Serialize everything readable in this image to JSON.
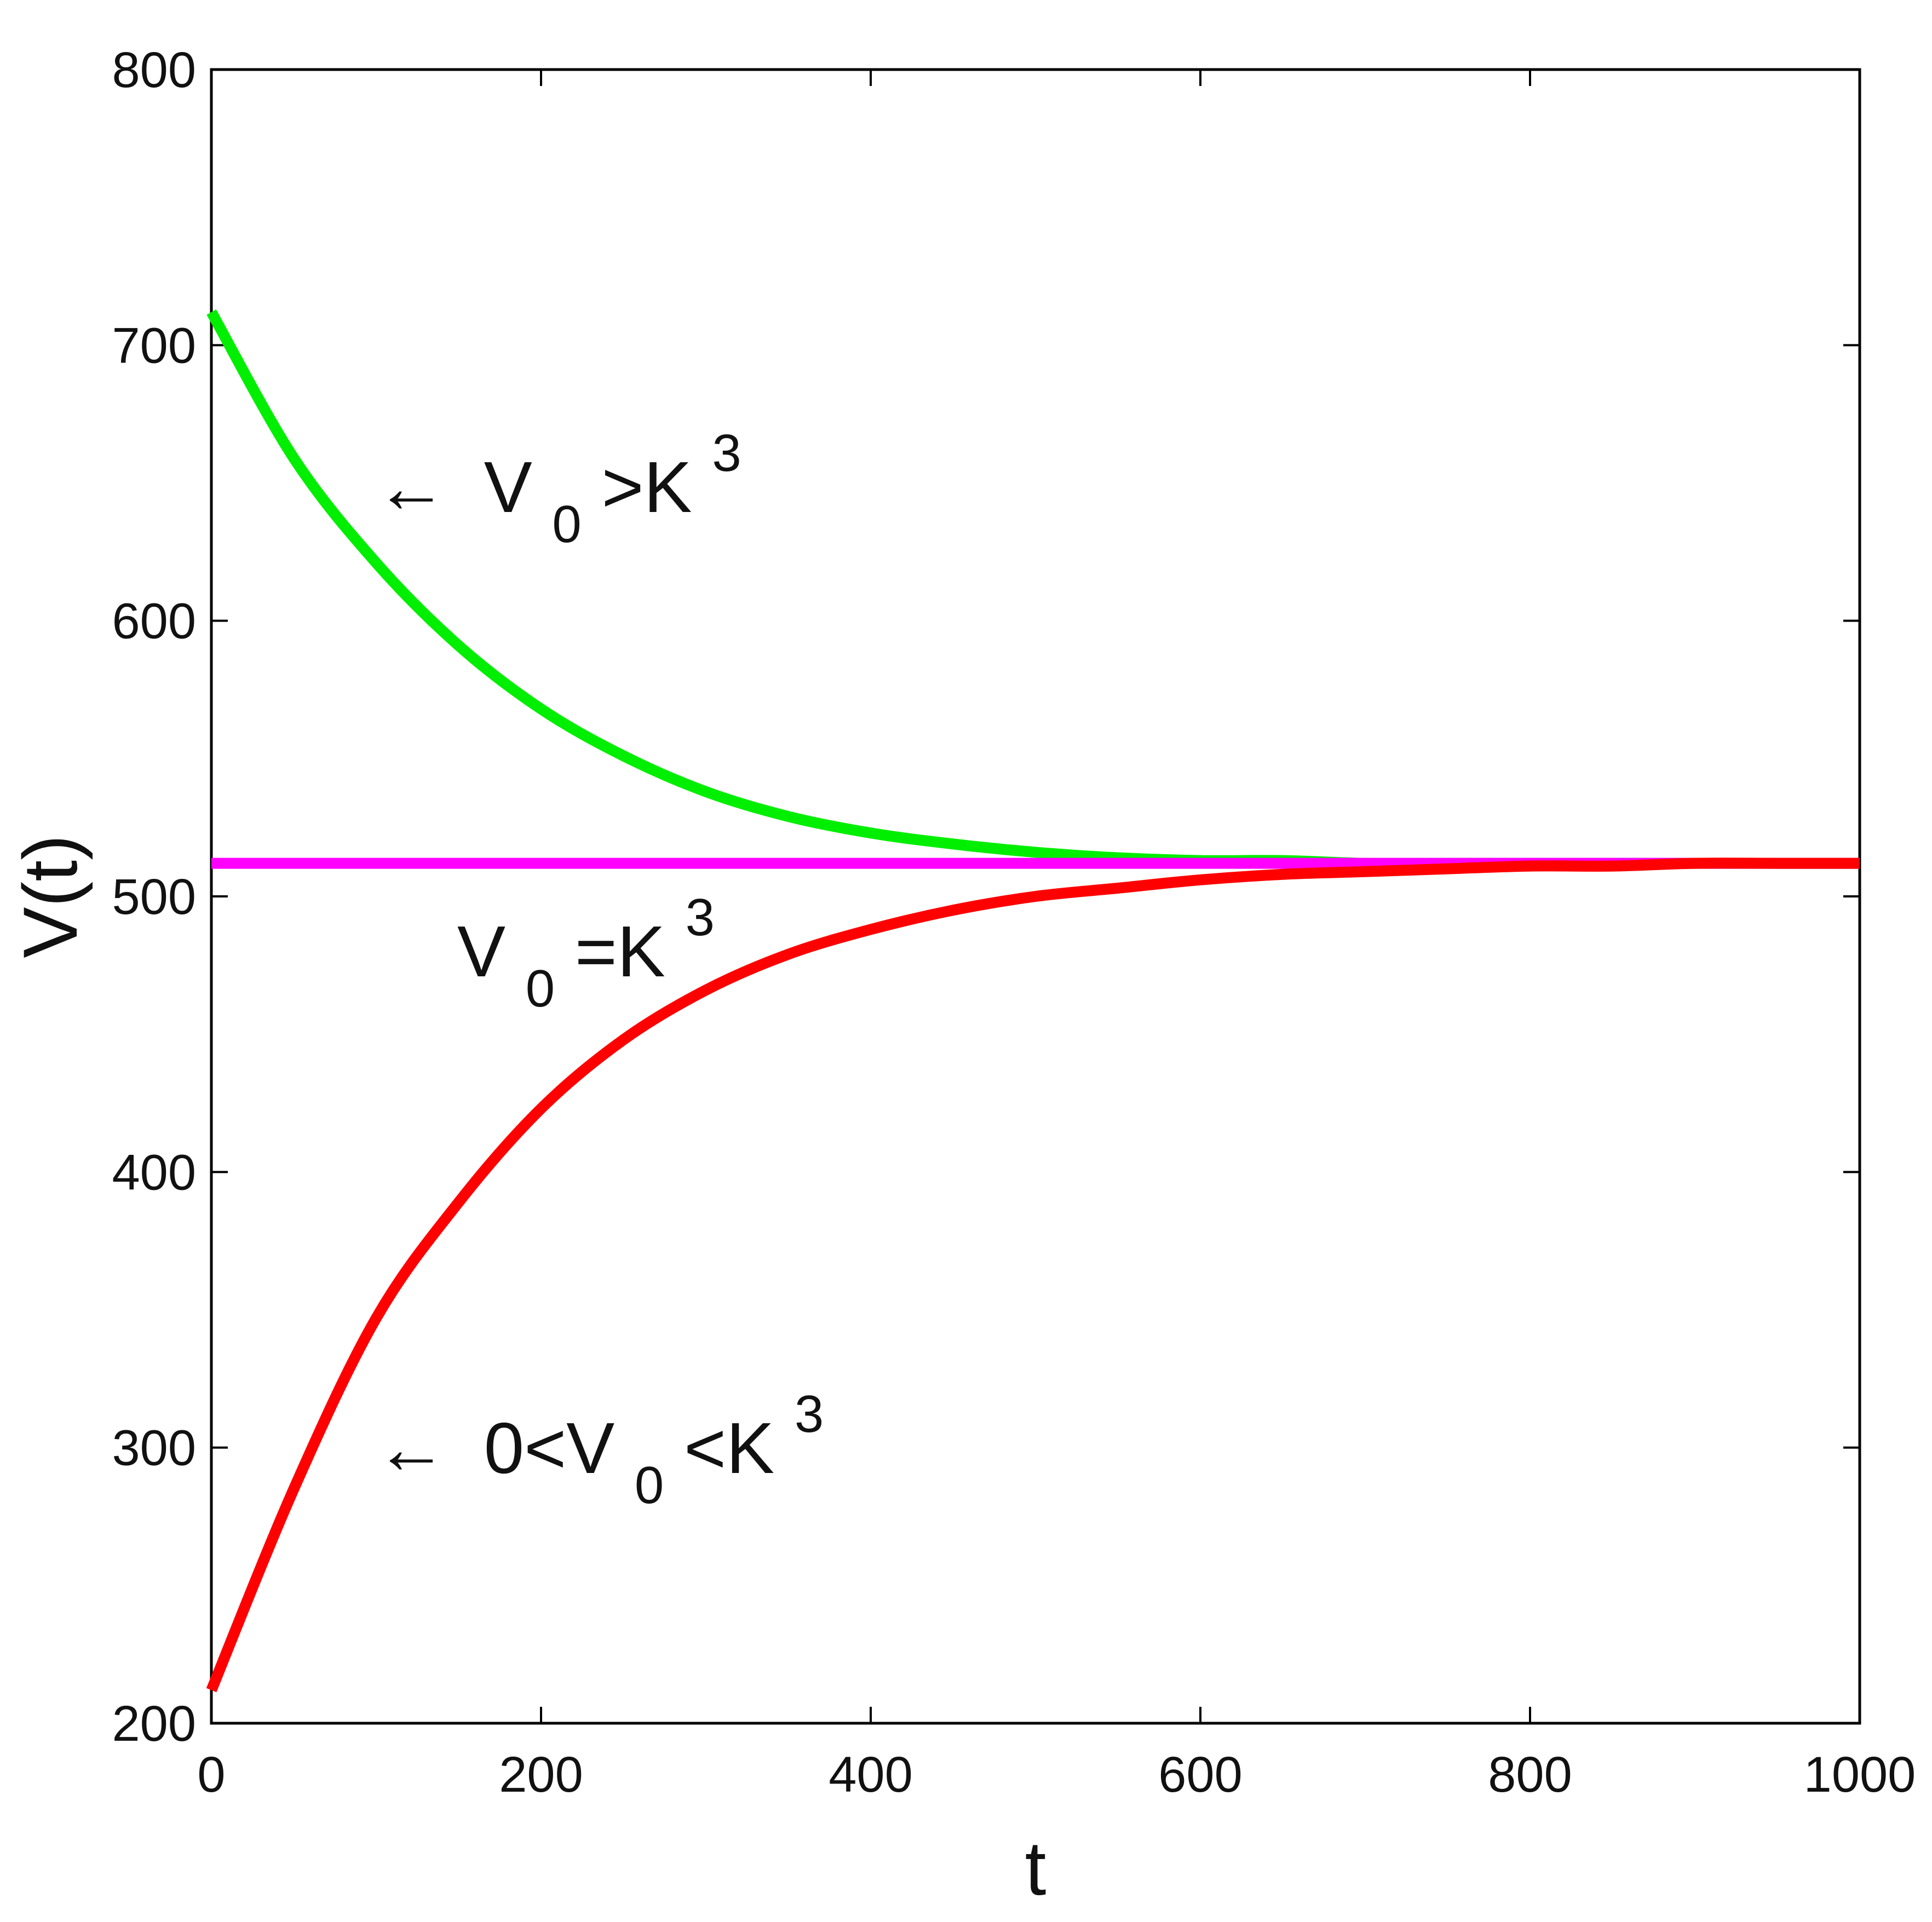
{
  "chart_data": {
    "type": "line",
    "title": "",
    "xlabel": "t",
    "ylabel": "V(t)",
    "xlim": [
      0,
      1000
    ],
    "ylim": [
      200,
      800
    ],
    "xticks": [
      "0",
      "200",
      "400",
      "600",
      "800",
      "1000"
    ],
    "yticks": [
      "200",
      "300",
      "400",
      "500",
      "600",
      "700",
      "800"
    ],
    "grid": false,
    "x": [
      0,
      50,
      100,
      150,
      200,
      250,
      300,
      350,
      400,
      450,
      500,
      550,
      600,
      650,
      700,
      750,
      800,
      850,
      900,
      950,
      1000
    ],
    "series": [
      {
        "color": "#00ee00",
        "values": [
          712,
          659,
          621,
          591,
          568,
          551,
          538,
          529,
          523,
          519,
          516,
          514,
          513,
          513,
          512,
          512,
          512,
          512,
          512,
          512,
          512
        ]
      },
      {
        "color": "#ff00ff",
        "values": [
          512,
          512,
          512,
          512,
          512,
          512,
          512,
          512,
          512,
          512,
          512,
          512,
          512,
          512,
          512,
          512,
          512,
          512,
          512,
          512,
          512
        ]
      },
      {
        "color": "#ff0000",
        "values": [
          212,
          285,
          347,
          389,
          423,
          448,
          466,
          479,
          488,
          495,
          500,
          503,
          506,
          508,
          509,
          510,
          511,
          511,
          512,
          512,
          512
        ]
      }
    ],
    "annotations": {
      "green": {
        "arrow": "←",
        "main": "V",
        "sub": "0",
        "rel": ">K",
        "sup": "3"
      },
      "magenta": {
        "main": "V",
        "sub": "0",
        "rel": "=K",
        "sup": "3"
      },
      "red": {
        "arrow": "←",
        "pre": "0<V",
        "sub": "0",
        "rel": "<K",
        "sup": "3"
      }
    }
  }
}
